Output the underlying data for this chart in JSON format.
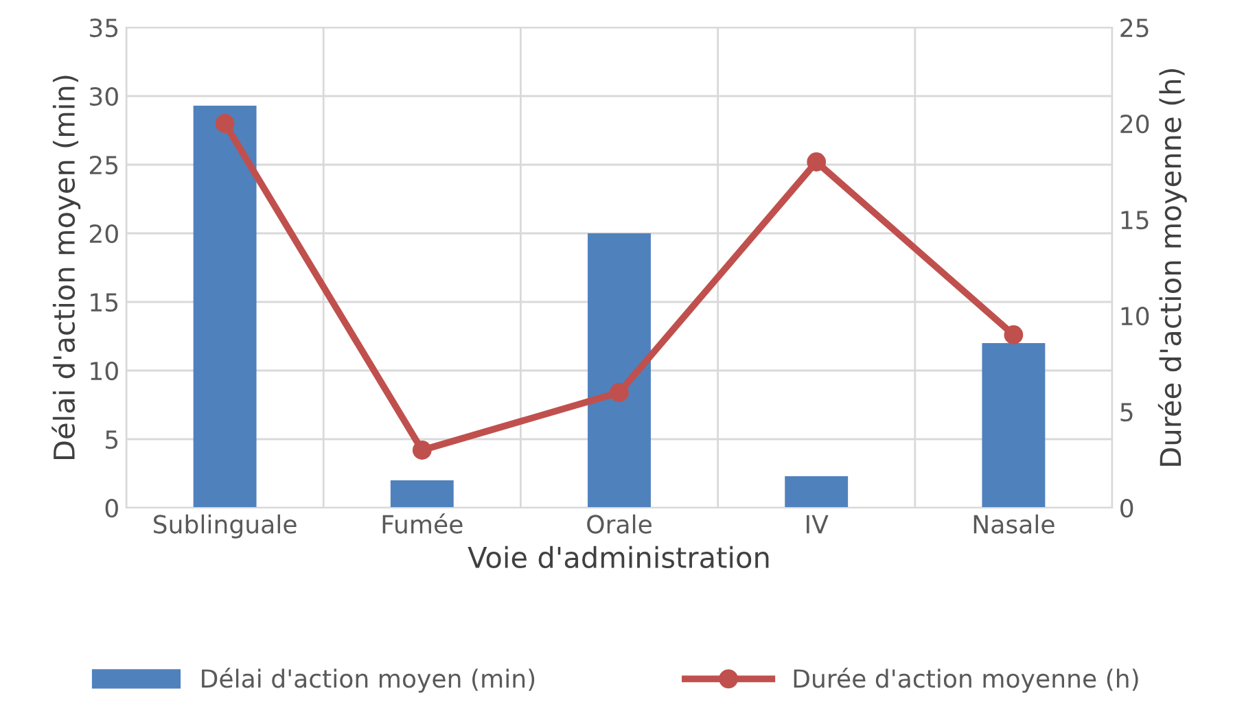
{
  "chart_data": {
    "type": "bar",
    "xlabel": "Voie d'administration",
    "ylabel": "Délai d'action moyen (min)",
    "y2label": "Durée d'action moyenne (h)",
    "categories": [
      "Sublinguale",
      "Fumée",
      "Orale",
      "IV",
      "Nasale"
    ],
    "series": [
      {
        "name": "Délai d'action moyen (min)",
        "color": "#4f81bd",
        "values": [
          29.3,
          2,
          20,
          2.3,
          12
        ]
      },
      {
        "name": "Durée d'action moyenne (h)",
        "type": "line",
        "axis": "y2",
        "color": "#c0504d",
        "values": [
          20,
          3,
          6,
          18,
          9
        ],
        "marker": "circle"
      }
    ],
    "ylim": [
      0,
      35
    ],
    "yticks": [
      0,
      5,
      10,
      15,
      20,
      25,
      30,
      35
    ],
    "y2lim": [
      0,
      25
    ],
    "y2ticks": [
      0,
      5,
      10,
      15,
      20,
      25
    ],
    "grid": true,
    "legend": "bottom"
  }
}
